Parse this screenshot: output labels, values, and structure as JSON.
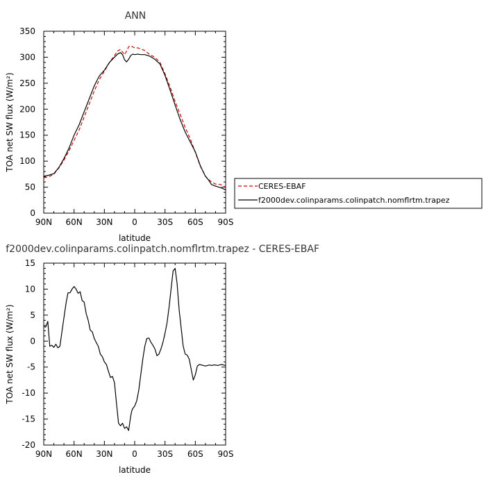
{
  "chart_data": [
    {
      "type": "line",
      "title": "ANN",
      "xlabel": "latitude",
      "ylabel": "TOA net SW flux (W/m²)",
      "xlim": [
        90,
        -90
      ],
      "ylim": [
        0,
        350
      ],
      "xticks": [
        {
          "value": 90,
          "label": "90N"
        },
        {
          "value": 60,
          "label": "60N"
        },
        {
          "value": 30,
          "label": "30N"
        },
        {
          "value": 0,
          "label": "0"
        },
        {
          "value": -30,
          "label": "30S"
        },
        {
          "value": -60,
          "label": "60S"
        },
        {
          "value": -90,
          "label": "90S"
        }
      ],
      "yticks": [
        0,
        50,
        100,
        150,
        200,
        250,
        300,
        350
      ],
      "legend_position": "right",
      "series": [
        {
          "name": "CERES-EBAF",
          "color": "#cc0000",
          "style": "dashed",
          "x": [
            90,
            85,
            80,
            75,
            70,
            65,
            60,
            55,
            50,
            45,
            40,
            35,
            30,
            25,
            20,
            17,
            14,
            12,
            10,
            8,
            6,
            4,
            2,
            0,
            -3,
            -6,
            -10,
            -15,
            -20,
            -25,
            -30,
            -35,
            -40,
            -45,
            -50,
            -55,
            -60,
            -65,
            -70,
            -73,
            -76,
            -80,
            -85,
            -90
          ],
          "y": [
            68,
            70,
            75,
            87,
            102,
            120,
            140,
            160,
            185,
            210,
            235,
            257,
            273,
            290,
            303,
            312,
            315,
            310,
            305,
            312,
            320,
            322,
            320,
            318,
            318,
            316,
            313,
            305,
            300,
            290,
            268,
            243,
            215,
            190,
            165,
            143,
            117,
            90,
            71,
            65,
            60,
            56,
            55,
            50
          ]
        },
        {
          "name": "f2000dev.colinparams.colinpatch.nomflrtm.trapez",
          "color": "#000000",
          "style": "solid",
          "x": [
            90,
            85,
            80,
            75,
            70,
            65,
            60,
            55,
            50,
            45,
            40,
            35,
            30,
            25,
            20,
            17,
            14,
            12,
            10,
            8,
            6,
            4,
            2,
            0,
            -3,
            -6,
            -10,
            -15,
            -20,
            -25,
            -30,
            -35,
            -40,
            -45,
            -50,
            -55,
            -60,
            -65,
            -70,
            -73,
            -76,
            -80,
            -85,
            -90
          ],
          "y": [
            71,
            73,
            76,
            88,
            105,
            125,
            150,
            170,
            195,
            220,
            245,
            264,
            275,
            290,
            300,
            306,
            309,
            305,
            295,
            291,
            296,
            303,
            306,
            305,
            306,
            305,
            305,
            302,
            296,
            287,
            265,
            237,
            208,
            180,
            156,
            137,
            118,
            91,
            71,
            64,
            55,
            52,
            49,
            45
          ]
        }
      ]
    },
    {
      "type": "line",
      "title": "f2000dev.colinparams.colinpatch.nomflrtm.trapez - CERES-EBAF",
      "xlabel": "latitude",
      "ylabel": "TOA net SW flux (W/m²)",
      "xlim": [
        90,
        -90
      ],
      "ylim": [
        -20,
        15
      ],
      "xticks": [
        {
          "value": 90,
          "label": "90N"
        },
        {
          "value": 60,
          "label": "60N"
        },
        {
          "value": 30,
          "label": "30N"
        },
        {
          "value": 0,
          "label": "0"
        },
        {
          "value": -30,
          "label": "30S"
        },
        {
          "value": -60,
          "label": "60S"
        },
        {
          "value": -90,
          "label": "90S"
        }
      ],
      "yticks": [
        -20,
        -15,
        -10,
        -5,
        0,
        5,
        10,
        15
      ],
      "series": [
        {
          "color": "#000000",
          "style": "solid",
          "x": [
            90,
            88,
            86,
            84,
            82,
            80,
            78,
            76,
            74,
            72,
            70,
            68,
            66,
            64,
            62,
            60,
            58,
            56,
            54,
            52,
            50,
            48,
            46,
            44,
            42,
            40,
            38,
            36,
            34,
            32,
            30,
            28,
            26,
            24,
            22,
            20,
            18,
            16,
            14,
            12,
            10,
            8,
            6,
            4,
            3,
            2,
            0,
            -2,
            -4,
            -6,
            -8,
            -10,
            -12,
            -14,
            -16,
            -18,
            -20,
            -22,
            -24,
            -26,
            -28,
            -30,
            -32,
            -34,
            -36,
            -38,
            -40,
            -42,
            -44,
            -46,
            -48,
            -50,
            -52,
            -54,
            -56,
            -58,
            -60,
            -62,
            -64,
            -66,
            -68,
            -70,
            -72,
            -74,
            -76,
            -78,
            -80,
            -82,
            -84,
            -86,
            -88,
            -90
          ],
          "y": [
            2.8,
            2.7,
            3.8,
            -1.0,
            -0.8,
            -1.2,
            -0.6,
            -1.3,
            -1.0,
            1.8,
            4.5,
            7.2,
            9.3,
            9.3,
            10.0,
            10.5,
            10.0,
            9.2,
            9.5,
            7.8,
            7.5,
            5.3,
            4.0,
            2.1,
            1.8,
            0.5,
            -0.3,
            -1.0,
            -2.5,
            -3.0,
            -4.0,
            -4.5,
            -5.8,
            -7.0,
            -6.8,
            -8.0,
            -12.0,
            -15.8,
            -16.3,
            -15.8,
            -16.8,
            -16.5,
            -17.2,
            -14.5,
            -13.5,
            -13.0,
            -12.5,
            -11.5,
            -9.5,
            -6.5,
            -3.5,
            -1.0,
            0.5,
            0.6,
            -0.2,
            -0.8,
            -1.5,
            -2.8,
            -2.5,
            -1.5,
            -0.2,
            1.5,
            3.5,
            6.5,
            10.0,
            13.5,
            14.0,
            11.0,
            6.0,
            2.5,
            -1.0,
            -2.5,
            -2.7,
            -3.5,
            -5.5,
            -7.5,
            -6.5,
            -4.8,
            -4.5,
            -4.6,
            -4.7,
            -4.8,
            -4.7,
            -4.6,
            -4.7,
            -4.6,
            -4.6,
            -4.7,
            -4.6,
            -4.5,
            -4.6,
            -4.7
          ]
        }
      ]
    }
  ]
}
